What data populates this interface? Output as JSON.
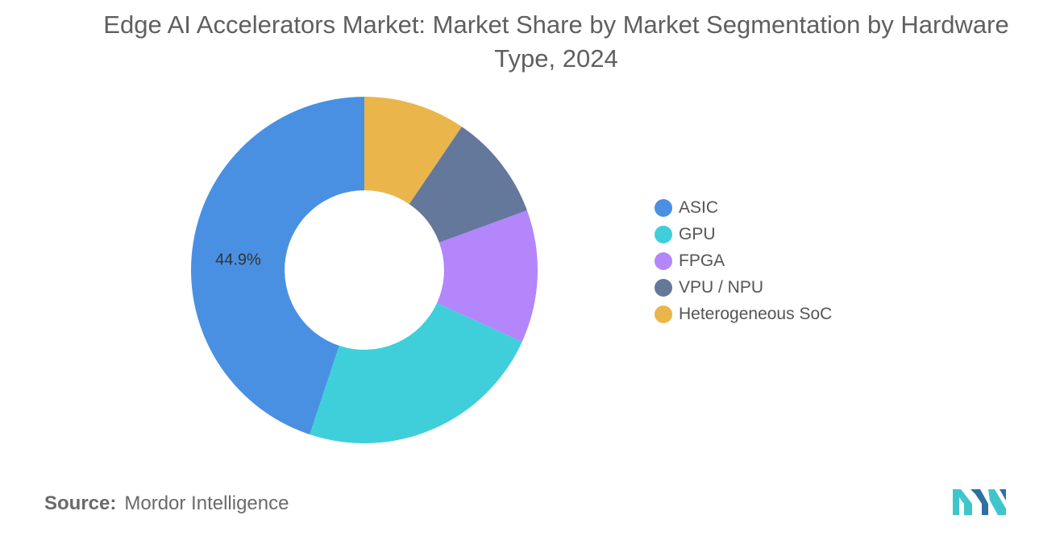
{
  "chart_data": {
    "type": "pie",
    "title": "Edge AI Accelerators Market: Market Share by Market Segmentation by Hardware Type, 2024",
    "categories": [
      "ASIC",
      "GPU",
      "FPGA",
      "VPU / NPU",
      "Heterogeneous SoC"
    ],
    "values": [
      44.9,
      23.3,
      12.4,
      9.9,
      9.5
    ],
    "colors": [
      "#4a90e2",
      "#3ecfdb",
      "#b386fc",
      "#64789b",
      "#eab54a"
    ],
    "data_labels": [
      "44.9%",
      "",
      "",
      "",
      ""
    ],
    "hole_ratio": 0.46,
    "start_angle_deg": 0,
    "direction": "counterclockwise",
    "legend_position": "right"
  },
  "source": {
    "prefix": "Source:",
    "name": "Mordor Intelligence"
  },
  "logo": {
    "colors": [
      "#3ec6cc",
      "#2f6fa3"
    ]
  }
}
